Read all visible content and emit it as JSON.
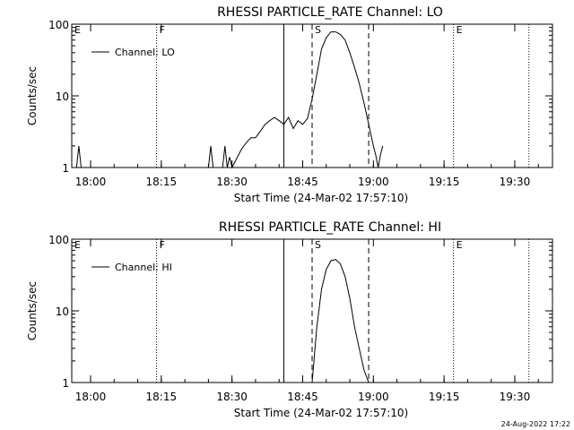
{
  "footer": {
    "timestamp": "24-Aug-2022 17:22"
  },
  "chart_data": [
    {
      "type": "line",
      "title": "RHESSI PARTICLE_RATE Channel: LO",
      "xlabel": "Start Time (24-Mar-02 17:57:10)",
      "ylabel": "Counts/sec",
      "yscale": "log",
      "ylim": [
        1,
        100
      ],
      "xlim": [
        "17:56",
        "19:38"
      ],
      "x_ticks": [
        "18:00",
        "18:15",
        "18:30",
        "18:45",
        "19:00",
        "19:15",
        "19:30"
      ],
      "y_ticks": [
        "1",
        "10",
        "100"
      ],
      "legend": {
        "position": "top-left",
        "entries": [
          "Channel: LO"
        ]
      },
      "series": [
        {
          "name": "Channel: LO",
          "x": [
            "17:56",
            "17:57",
            "17:57.5",
            "17:58",
            "18:25",
            "18:25.5",
            "18:26",
            "18:28",
            "18:28.5",
            "18:29",
            "18:29.5",
            "18:30",
            "18:32",
            "18:33",
            "18:34",
            "18:35",
            "18:36",
            "18:37",
            "18:38",
            "18:39",
            "18:40",
            "18:41",
            "18:42",
            "18:43",
            "18:44",
            "18:45",
            "18:46",
            "18:47",
            "18:48",
            "18:49",
            "18:50",
            "18:51",
            "18:52",
            "18:53",
            "18:54",
            "18:55",
            "18:56",
            "18:57",
            "18:58",
            "18:59",
            "19:00",
            "19:00.5",
            "19:01",
            "19:01.5",
            "19:02"
          ],
          "y": [
            1,
            1,
            2,
            1,
            1,
            2,
            1,
            1,
            2,
            1,
            1.4,
            1,
            1.8,
            2.2,
            2.6,
            2.6,
            3.2,
            4,
            4.5,
            5,
            4.5,
            4,
            5,
            3.5,
            4.5,
            4,
            4.8,
            9,
            20,
            45,
            65,
            78,
            78,
            72,
            60,
            40,
            25,
            15,
            8,
            4,
            2,
            1.5,
            1,
            1.5,
            2
          ]
        }
      ],
      "vertical_markers": [
        {
          "time": "17:56",
          "label": "E",
          "style": "dotted"
        },
        {
          "time": "18:14",
          "label": "F",
          "style": "dotted"
        },
        {
          "time": "18:41",
          "label": "",
          "style": "solid"
        },
        {
          "time": "18:47",
          "label": "S",
          "style": "dashed"
        },
        {
          "time": "18:59",
          "label": "",
          "style": "dashed"
        },
        {
          "time": "19:17",
          "label": "E",
          "style": "dotted"
        },
        {
          "time": "19:33",
          "label": "",
          "style": "dotted"
        }
      ]
    },
    {
      "type": "line",
      "title": "RHESSI PARTICLE_RATE Channel: HI",
      "xlabel": "Start Time (24-Mar-02 17:57:10)",
      "ylabel": "Counts/sec",
      "yscale": "log",
      "ylim": [
        1,
        100
      ],
      "xlim": [
        "17:56",
        "19:38"
      ],
      "x_ticks": [
        "18:00",
        "18:15",
        "18:30",
        "18:45",
        "19:00",
        "19:15",
        "19:30"
      ],
      "y_ticks": [
        "1",
        "10",
        "100"
      ],
      "legend": {
        "position": "top-left",
        "entries": [
          "Channel: HI"
        ]
      },
      "series": [
        {
          "name": "Channel: HI",
          "x": [
            "18:47",
            "18:48",
            "18:49",
            "18:50",
            "18:51",
            "18:52",
            "18:53",
            "18:54",
            "18:55",
            "18:56",
            "18:57",
            "18:58",
            "18:59"
          ],
          "y": [
            1,
            6,
            20,
            38,
            50,
            52,
            45,
            30,
            15,
            6,
            3,
            1.5,
            1
          ]
        }
      ],
      "vertical_markers": [
        {
          "time": "17:56",
          "label": "E",
          "style": "dotted"
        },
        {
          "time": "18:14",
          "label": "F",
          "style": "dotted"
        },
        {
          "time": "18:41",
          "label": "",
          "style": "solid"
        },
        {
          "time": "18:47",
          "label": "S",
          "style": "dashed"
        },
        {
          "time": "18:59",
          "label": "",
          "style": "dashed"
        },
        {
          "time": "19:17",
          "label": "E",
          "style": "dotted"
        },
        {
          "time": "19:33",
          "label": "",
          "style": "dotted"
        }
      ]
    }
  ]
}
